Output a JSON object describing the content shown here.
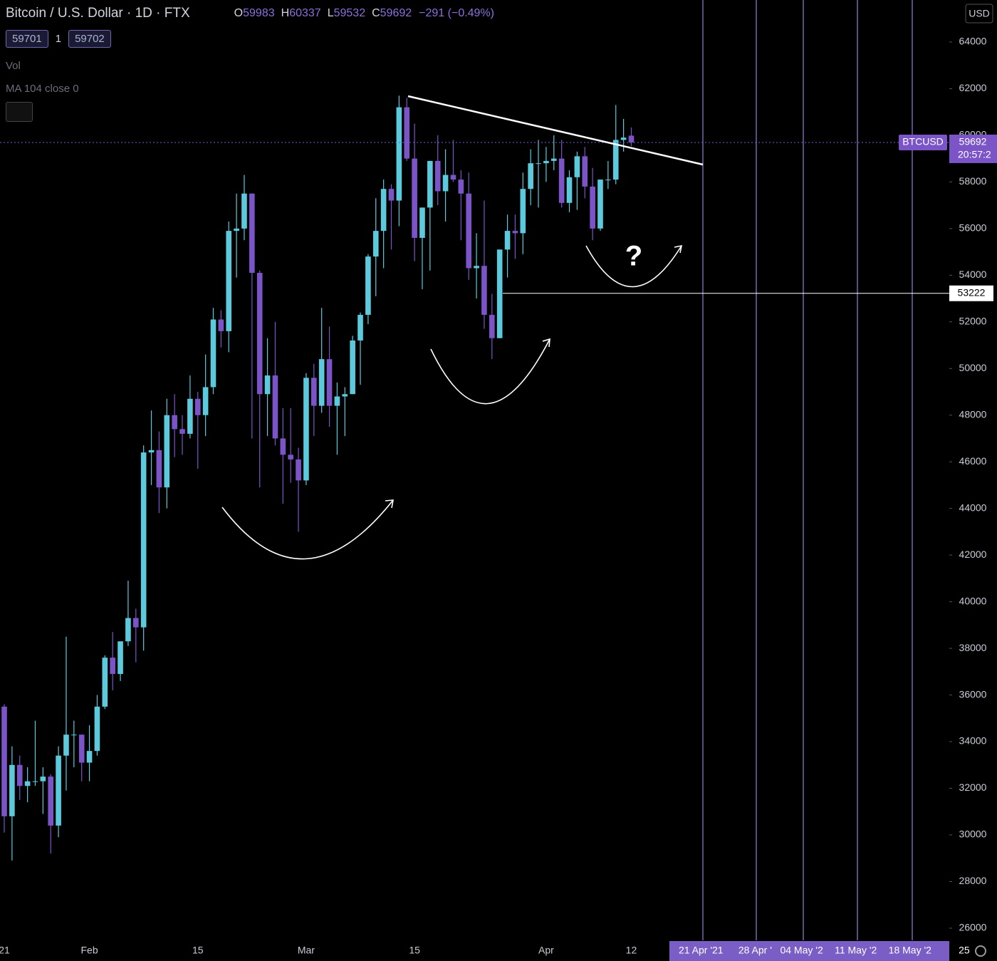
{
  "header": {
    "title": "Bitcoin / U.S. Dollar · 1D · FTX",
    "ohlc_labels": [
      "O",
      "H",
      "L",
      "C"
    ],
    "change": "−291 (−0.49%)",
    "bid": 59701,
    "spread": 1,
    "ask": 59702,
    "indicators": [
      "Vol",
      "MA 104 close 0"
    ]
  },
  "chart_data": {
    "type": "candlestick",
    "symbol": "BTCUSD",
    "currency": "USD",
    "countdown": "20:57:2",
    "annotation": "?",
    "up_color": "#5ccadc",
    "down_color": "#7b55c7",
    "categories": [
      "21",
      null,
      null,
      null,
      null,
      null,
      null,
      null,
      null,
      null,
      null,
      "Feb",
      null,
      null,
      null,
      null,
      null,
      null,
      null,
      null,
      null,
      null,
      null,
      null,
      null,
      "15",
      null,
      null,
      null,
      null,
      null,
      null,
      null,
      null,
      null,
      null,
      null,
      null,
      null,
      "Mar",
      null,
      null,
      null,
      null,
      null,
      null,
      null,
      null,
      null,
      null,
      null,
      null,
      null,
      "15",
      null,
      null,
      null,
      null,
      null,
      null,
      null,
      null,
      null,
      null,
      null,
      null,
      null,
      null,
      null,
      null,
      "Apr",
      null,
      null,
      null,
      null,
      null,
      null,
      null,
      null,
      null,
      null,
      "12",
      null,
      null,
      null,
      null,
      null,
      null,
      null,
      null,
      "21 Apr '21",
      null,
      null,
      null,
      null,
      null,
      null,
      "28 Apr '",
      null,
      null,
      null,
      null,
      null,
      "04 May '2",
      null,
      null,
      null,
      null,
      null,
      null,
      "11 May '2",
      null,
      null,
      null,
      null,
      null,
      null,
      "18 May '2",
      null,
      null,
      null,
      null,
      null,
      null,
      "25"
    ],
    "open": [
      35500,
      30800,
      33000,
      32100,
      32300,
      32300,
      32500,
      30400,
      33400,
      34300,
      34300,
      33100,
      33600,
      35500,
      37600,
      36900,
      38300,
      39300,
      38900,
      46400,
      46500,
      44900,
      48000,
      47400,
      47200,
      48700,
      48000,
      49200,
      52100,
      51600,
      55900,
      56000,
      57500,
      54100,
      48900,
      49700,
      47000,
      46300,
      46100,
      45200,
      49600,
      48400,
      50400,
      48400,
      48800,
      48900,
      51200,
      52300,
      54800,
      55900,
      57700,
      57200,
      61200,
      59000,
      55600,
      56900,
      58900,
      57600,
      58300,
      58100,
      57500,
      54300,
      54400,
      52300,
      51300,
      55100,
      55900,
      55800,
      57700,
      58800,
      58800,
      58900,
      59000,
      57100,
      58200,
      59100,
      57800,
      56000,
      58100,
      58100,
      59800,
      59983,
      null,
      null,
      null,
      null,
      null,
      null,
      null,
      null,
      null,
      null,
      null,
      null,
      null,
      null,
      null,
      null,
      null,
      null,
      null,
      null,
      null,
      null,
      null,
      null,
      null,
      null,
      null,
      null,
      null,
      null,
      null,
      null,
      null,
      null,
      null,
      null,
      null,
      null,
      null,
      null,
      null,
      null,
      null
    ],
    "high": [
      35600,
      33800,
      33400,
      32900,
      34900,
      32900,
      32600,
      33800,
      38500,
      34900,
      34300,
      34700,
      36000,
      37700,
      38700,
      38300,
      40900,
      39700,
      46700,
      48200,
      47300,
      48700,
      48900,
      48000,
      49700,
      49000,
      50600,
      52600,
      52500,
      56300,
      57500,
      58300,
      57500,
      54200,
      51300,
      52000,
      48300,
      48300,
      46600,
      49800,
      50200,
      52600,
      51800,
      49400,
      49200,
      51400,
      52400,
      54900,
      57300,
      58100,
      57900,
      61700,
      61600,
      60500,
      56900,
      58900,
      60000,
      59400,
      59800,
      58500,
      58400,
      55800,
      57200,
      53200,
      55100,
      56600,
      56600,
      58400,
      59400,
      59800,
      59500,
      60000,
      59800,
      58500,
      59300,
      59500,
      58600,
      58100,
      58900,
      61300,
      60700,
      60337,
      null,
      null,
      null,
      null,
      null,
      null,
      null,
      null,
      null,
      null,
      null,
      null,
      null,
      null,
      null,
      null,
      null,
      null,
      null,
      null,
      null,
      null,
      null,
      null,
      null,
      null,
      null,
      null,
      null,
      null,
      null,
      null,
      null,
      null,
      null,
      null,
      null,
      null,
      null,
      null,
      null,
      null,
      null
    ],
    "low": [
      30100,
      28900,
      31500,
      31400,
      32100,
      30900,
      29200,
      29900,
      31900,
      32900,
      32300,
      32300,
      33400,
      35400,
      36200,
      36600,
      38100,
      37400,
      37900,
      45000,
      43800,
      44000,
      46200,
      46300,
      47000,
      45700,
      47100,
      48900,
      50900,
      50700,
      53900,
      55500,
      47000,
      44900,
      47100,
      46700,
      44200,
      45100,
      43000,
      45000,
      47100,
      48100,
      47500,
      46300,
      47100,
      48900,
      49300,
      51900,
      53100,
      54300,
      55100,
      56100,
      58900,
      54600,
      53400,
      54200,
      57000,
      56300,
      58000,
      55500,
      53800,
      53000,
      51700,
      50400,
      51300,
      53900,
      54700,
      54900,
      57000,
      56900,
      58000,
      58500,
      56900,
      56700,
      56800,
      57300,
      55500,
      55900,
      57700,
      57900,
      59300,
      59532,
      null,
      null,
      null,
      null,
      null,
      null,
      null,
      null,
      null,
      null,
      null,
      null,
      null,
      null,
      null,
      null,
      null,
      null,
      null,
      null,
      null,
      null,
      null,
      null,
      null,
      null,
      null,
      null,
      null,
      null,
      null,
      null,
      null,
      null,
      null,
      null,
      null,
      null,
      null,
      null,
      null,
      null,
      null
    ],
    "close": [
      30800,
      33000,
      32100,
      32300,
      32300,
      32500,
      30400,
      33400,
      34300,
      34300,
      33100,
      33600,
      35500,
      37600,
      36900,
      38300,
      39300,
      38900,
      46400,
      46500,
      44900,
      48000,
      47400,
      47200,
      48700,
      48000,
      49200,
      52100,
      51600,
      55900,
      56000,
      57500,
      54100,
      48900,
      49700,
      47000,
      46300,
      46100,
      45200,
      49600,
      48400,
      50400,
      48400,
      48800,
      48900,
      51200,
      52300,
      54800,
      55900,
      57700,
      57200,
      61200,
      59000,
      55600,
      56900,
      58900,
      57600,
      58300,
      58100,
      57500,
      54300,
      54400,
      52300,
      51300,
      55100,
      55900,
      55800,
      57700,
      58800,
      58800,
      58900,
      59000,
      57100,
      58200,
      59100,
      57800,
      56000,
      58100,
      58100,
      59800,
      59900,
      59692,
      null,
      null,
      null,
      null,
      null,
      null,
      null,
      null,
      null,
      null,
      null,
      null,
      null,
      null,
      null,
      null,
      null,
      null,
      null,
      null,
      null,
      null,
      null,
      null,
      null,
      null,
      null,
      null,
      null,
      null,
      null,
      null,
      null,
      null,
      null,
      null,
      null,
      null,
      null,
      null,
      null,
      null,
      null
    ],
    "ylim": [
      25540,
      65800
    ],
    "yticks": [
      26000,
      28000,
      30000,
      32000,
      34000,
      36000,
      38000,
      40000,
      42000,
      44000,
      46000,
      48000,
      50000,
      52000,
      54000,
      56000,
      58000,
      60000,
      62000,
      64000
    ],
    "price_line": 53222
  }
}
